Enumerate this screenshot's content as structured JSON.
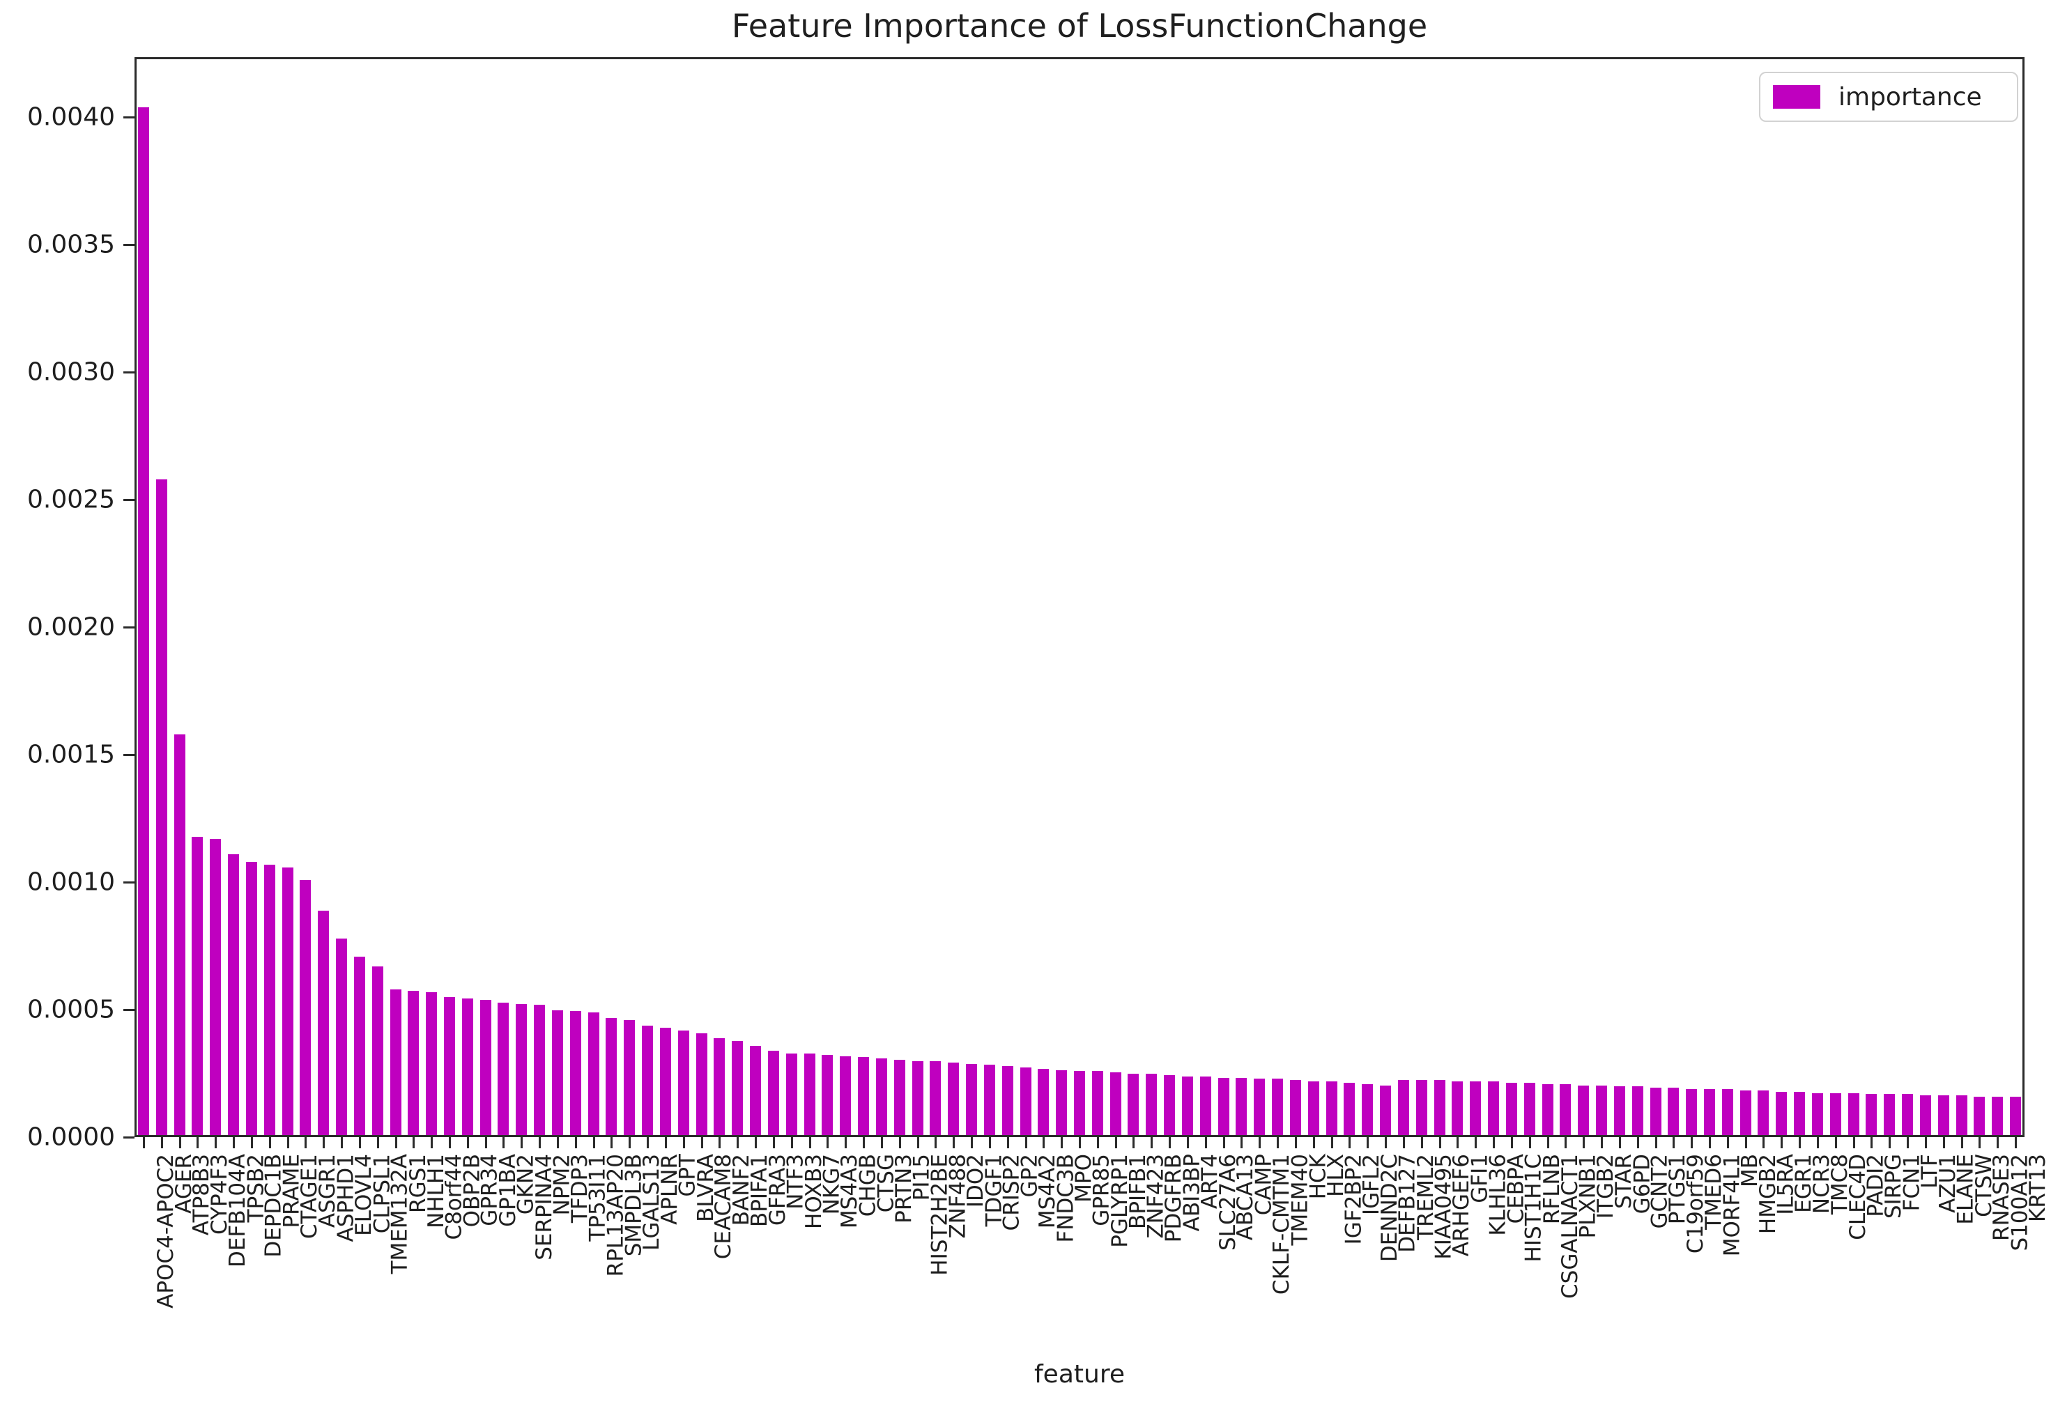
{
  "title": "Feature Importance of LossFunctionChange",
  "xlabel": "feature",
  "legend": {
    "label": "importance",
    "swatch_color": "#bf00bf"
  },
  "y_axis": {
    "ticks": [
      "0.0000",
      "0.0005",
      "0.0010",
      "0.0015",
      "0.0020",
      "0.0025",
      "0.0030",
      "0.0035",
      "0.0040"
    ]
  },
  "chart_data": {
    "type": "bar",
    "title": "Feature Importance of LossFunctionChange",
    "xlabel": "feature",
    "ylabel": "",
    "series_name": "importance",
    "bar_color": "#bf00bf",
    "legend_position": "upper right",
    "grid": false,
    "x_tick_rotation": 90,
    "ylim": [
      0,
      0.00425
    ],
    "categories": [
      "APOC4-APOC2",
      "AGER",
      "ATP8B3",
      "CYP4F3",
      "DEFB104A",
      "TPSB2",
      "DEPDC1B",
      "PRAME",
      "CTAGE1",
      "ASGR1",
      "ASPHD1",
      "ELOVL4",
      "CLPSL1",
      "TMEM132A",
      "RGS1",
      "NHLH1",
      "C8orf44",
      "OBP2B",
      "GPR34",
      "GP1BA",
      "GKN2",
      "SERPINA4",
      "NPM2",
      "TFDP3",
      "TP53I11",
      "RPL13AP20",
      "SMPDL3B",
      "LGALS13",
      "APLNR",
      "GPT",
      "BLVRA",
      "CEACAM8",
      "BANF2",
      "BPIFA1",
      "GFRA3",
      "NTF3",
      "HOXB3",
      "NKG7",
      "MS4A3",
      "CHGB",
      "CTSG",
      "PRTN3",
      "PI15",
      "HIST2H2BE",
      "ZNF488",
      "IDO2",
      "TDGF1",
      "CRISP2",
      "GP2",
      "MS4A2",
      "FNDC3B",
      "MPO",
      "GPR85",
      "PGLYRP1",
      "BPIFB1",
      "ZNF423",
      "PDGFRB",
      "ABI3BP",
      "ART4",
      "SLC27A6",
      "ABCA13",
      "CAMP",
      "CKLF-CMTM1",
      "TMEM40",
      "HCK",
      "HLX",
      "IGF2BP2",
      "IGFL2",
      "DENND2C",
      "DEFB127",
      "TREML2",
      "KIAA0495",
      "ARHGEF6",
      "GFI1",
      "KLHL36",
      "CEBPA",
      "HIST1H1C",
      "RFLNB",
      "CSGALNACT1",
      "PLXNB1",
      "ITGB2",
      "STAR",
      "G6PD",
      "GCNT2",
      "PTGS1",
      "C19orf59",
      "TMED6",
      "MORF4L1",
      "MB",
      "HMGB2",
      "IL5RA",
      "EGR1",
      "NCR3",
      "TMC8",
      "CLEC4D",
      "PADI2",
      "SIRPG",
      "FCN1",
      "LTF",
      "AZU1",
      "ELANE",
      "CTSW",
      "RNASE3",
      "S100A12",
      "KRT13"
    ],
    "values": [
      0.00403,
      0.00257,
      0.00157,
      0.00117,
      0.00116,
      0.0011,
      0.00107,
      0.00106,
      0.00105,
      0.001,
      0.00088,
      0.00077,
      0.0007,
      0.00066,
      0.00057,
      0.000565,
      0.00056,
      0.00054,
      0.000535,
      0.00053,
      0.00052,
      0.000515,
      0.00051,
      0.00049,
      0.000485,
      0.00048,
      0.00046,
      0.00045,
      0.00043,
      0.00042,
      0.00041,
      0.0004,
      0.00038,
      0.00037,
      0.00035,
      0.00033,
      0.00032,
      0.00032,
      0.000315,
      0.00031,
      0.000305,
      0.0003,
      0.000295,
      0.00029,
      0.00029,
      0.000285,
      0.00028,
      0.000275,
      0.00027,
      0.000265,
      0.00026,
      0.000255,
      0.00025,
      0.00025,
      0.000245,
      0.00024,
      0.00024,
      0.000235,
      0.00023,
      0.00023,
      0.000225,
      0.000225,
      0.00022,
      0.00022,
      0.000215,
      0.00021,
      0.00021,
      0.000205,
      0.0002,
      0.000195,
      0.000215,
      0.000215,
      0.000215,
      0.00021,
      0.00021,
      0.00021,
      0.000205,
      0.000205,
      0.0002,
      0.0002,
      0.000195,
      0.000195,
      0.00019,
      0.00019,
      0.000185,
      0.000185,
      0.00018,
      0.00018,
      0.00018,
      0.000175,
      0.000175,
      0.00017,
      0.00017,
      0.000165,
      0.000165,
      0.000165,
      0.00016,
      0.00016,
      0.00016,
      0.000155,
      0.000155,
      0.000155,
      0.00015,
      0.00015,
      0.00015
    ]
  }
}
